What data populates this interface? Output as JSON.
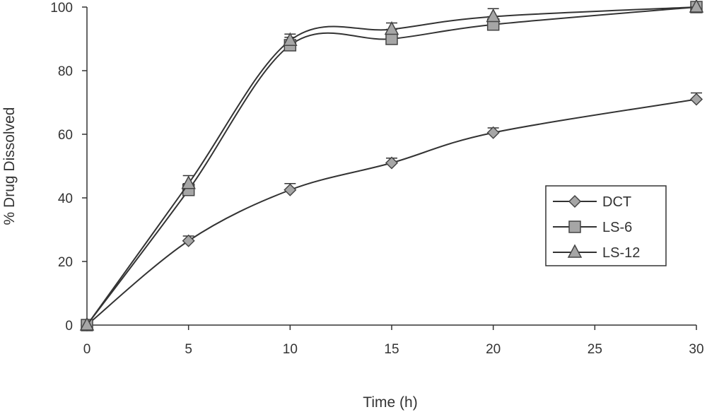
{
  "chart_data": {
    "type": "line",
    "title": "",
    "xlabel": "Time (h)",
    "ylabel": "% Drug Dissolved",
    "x": [
      0,
      5,
      10,
      15,
      20,
      30
    ],
    "xlim": [
      0,
      30
    ],
    "ylim": [
      0,
      100
    ],
    "xticks": [
      "0",
      "5",
      "10",
      "15",
      "20",
      "25",
      "30"
    ],
    "yticks": [
      "0",
      "20",
      "40",
      "60",
      "80",
      "100"
    ],
    "grid": false,
    "legend_position": "right",
    "series": [
      {
        "name": "DCT",
        "marker": "diamond",
        "values": [
          0,
          26.5,
          42.5,
          51,
          60.5,
          71
        ],
        "error": [
          0,
          1.5,
          2,
          1.5,
          1.5,
          2
        ]
      },
      {
        "name": "LS-6",
        "marker": "square",
        "values": [
          0,
          42.5,
          88,
          90,
          94.5,
          100
        ],
        "error": [
          0,
          2,
          2.5,
          3,
          2.5,
          0
        ]
      },
      {
        "name": "LS-12",
        "marker": "triangle",
        "values": [
          0,
          44.5,
          89.5,
          93,
          97,
          100
        ],
        "error": [
          0,
          2.5,
          2,
          2,
          2.5,
          0
        ]
      }
    ],
    "colors": {
      "line": "#333333",
      "marker_fill": "#a6a6a6",
      "marker_stroke": "#444444"
    }
  }
}
